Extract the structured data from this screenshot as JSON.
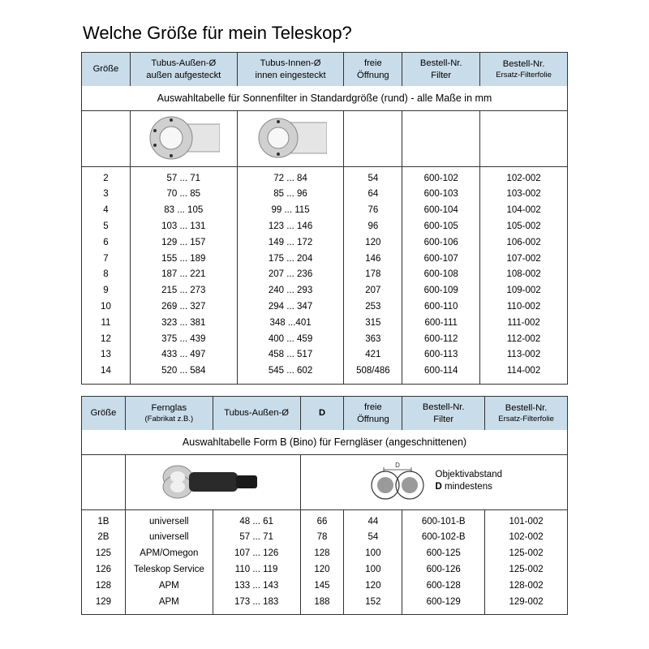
{
  "title": "Welche Größe für mein Teleskop?",
  "table1": {
    "caption": "Auswahltabelle für Sonnenfilter in Standardgröße (rund) - alle Maße in mm",
    "columns": [
      "Größe",
      "Tubus-Außen-Ø\naußen aufgesteckt",
      "Tubus-Innen-Ø\ninnen eingesteckt",
      "freie\nÖffnung",
      "Bestell-Nr.\nFilter",
      "Bestell-Nr.\nErsatz-Filterfolie"
    ],
    "col_small": [
      false,
      false,
      false,
      false,
      false,
      true
    ],
    "rows": [
      [
        "2",
        "57 ... 71",
        "72 ... 84",
        "54",
        "600-102",
        "102-002"
      ],
      [
        "3",
        "70 ... 85",
        "85 ... 96",
        "64",
        "600-103",
        "103-002"
      ],
      [
        "4",
        "83 ... 105",
        "99 ... 115",
        "76",
        "600-104",
        "104-002"
      ],
      [
        "5",
        "103 ... 131",
        "123 ... 146",
        "96",
        "600-105",
        "105-002"
      ],
      [
        "6",
        "129 ... 157",
        "149 ... 172",
        "120",
        "600-106",
        "106-002"
      ],
      [
        "7",
        "155 ... 189",
        "175 ... 204",
        "146",
        "600-107",
        "107-002"
      ],
      [
        "8",
        "187 ... 221",
        "207 ... 236",
        "178",
        "600-108",
        "108-002"
      ],
      [
        "9",
        "215 ... 273",
        "240 ... 293",
        "207",
        "600-109",
        "109-002"
      ],
      [
        "10",
        "269 ... 327",
        "294 ... 347",
        "253",
        "600-110",
        "110-002"
      ],
      [
        "11",
        "323 ... 381",
        "348 ...401",
        "315",
        "600-111",
        "111-002"
      ],
      [
        "12",
        "375 ... 439",
        "400 ... 459",
        "363",
        "600-112",
        "112-002"
      ],
      [
        "13",
        "433 ... 497",
        "458 ... 517",
        "421",
        "600-113",
        "113-002"
      ],
      [
        "14",
        "520 ... 584",
        "545 ... 602",
        "508/486",
        "600-114",
        "114-002"
      ]
    ],
    "col_widths_pct": [
      10,
      22,
      22,
      12,
      16,
      18
    ]
  },
  "table2": {
    "caption": "Auswahltabelle Form B (Bino) für Ferngläser  (angeschnittenen)",
    "columns": [
      "Größe",
      "Fernglas\n(Fabrikat z.B.)",
      "Tubus-Außen-Ø",
      "D",
      "freie\nÖffnung",
      "Bestell-Nr.\nFilter",
      "Bestell-Nr.\nErsatz-Filterfolie"
    ],
    "col_small": [
      false,
      true,
      false,
      false,
      false,
      false,
      true
    ],
    "image_caption": "Objektivabstand\nD mindestens",
    "rows": [
      [
        "1B",
        "universell",
        "48 ... 61",
        "66",
        "44",
        "600-101-B",
        "101-002"
      ],
      [
        "2B",
        "universell",
        "57 ... 71",
        "78",
        "54",
        "600-102-B",
        "102-002"
      ],
      [
        "125",
        "APM/Omegon",
        "107 ... 126",
        "128",
        "100",
        "600-125",
        "125-002"
      ],
      [
        "126",
        "Teleskop Service",
        "110 ... 119",
        "120",
        "100",
        "600-126",
        "125-002"
      ],
      [
        "128",
        "APM",
        "133 ... 143",
        "145",
        "120",
        "600-128",
        "128-002"
      ],
      [
        "129",
        "APM",
        "173 ... 183",
        "188",
        "152",
        "600-129",
        "129-002"
      ]
    ],
    "col_widths_pct": [
      9,
      18,
      18,
      9,
      12,
      17,
      17
    ]
  },
  "colors": {
    "header_bg": "#c9dce9",
    "border": "#333333",
    "text": "#000000",
    "bg": "#ffffff"
  }
}
